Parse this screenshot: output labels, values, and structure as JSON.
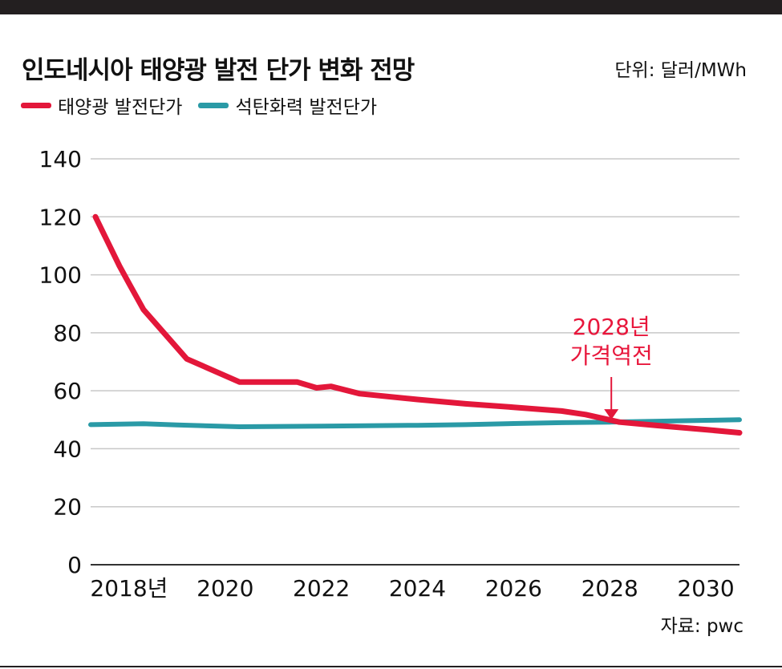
{
  "title": "인도네시아 태양광 발전 단가 변화 전망",
  "unit": "단위: 달러/MWh",
  "source": "자료: pwc",
  "colors": {
    "solar": "#e3173a",
    "coal": "#2a9aa6",
    "grid": "#c8c8c8",
    "axis": "#333333"
  },
  "chart_data": {
    "type": "line",
    "title": "인도네시아 태양광 발전 단가 변화 전망",
    "ylabel": "",
    "xlabel": "",
    "ylim": [
      0,
      140
    ],
    "xlim": [
      2017.2,
      2030.7
    ],
    "yticks": [
      0,
      20,
      40,
      60,
      80,
      100,
      120,
      140
    ],
    "xticks": [
      {
        "value": 2018,
        "label": "2018년"
      },
      {
        "value": 2020,
        "label": "2020"
      },
      {
        "value": 2022,
        "label": "2022"
      },
      {
        "value": 2024,
        "label": "2024"
      },
      {
        "value": 2026,
        "label": "2026"
      },
      {
        "value": 2028,
        "label": "2028"
      },
      {
        "value": 2030,
        "label": "2030"
      }
    ],
    "grid": true,
    "legend_position": "top-left",
    "series": [
      {
        "name": "태양광 발전단가",
        "color": "#e3173a",
        "points": [
          [
            2017.3,
            120
          ],
          [
            2017.8,
            103
          ],
          [
            2018.0,
            97
          ],
          [
            2018.3,
            88
          ],
          [
            2019.2,
            71
          ],
          [
            2020.3,
            63
          ],
          [
            2021.5,
            63
          ],
          [
            2021.9,
            61
          ],
          [
            2022.2,
            61.5
          ],
          [
            2022.8,
            59
          ],
          [
            2024.0,
            57
          ],
          [
            2025.0,
            55.5
          ],
          [
            2026.0,
            54.3
          ],
          [
            2027.0,
            53
          ],
          [
            2027.5,
            51.8
          ],
          [
            2028.2,
            49.2
          ],
          [
            2029.0,
            48
          ],
          [
            2030.0,
            46.6
          ],
          [
            2030.7,
            45.5
          ]
        ]
      },
      {
        "name": "석탄화력 발전단가",
        "color": "#2a9aa6",
        "points": [
          [
            2017.2,
            48.3
          ],
          [
            2018.3,
            48.6
          ],
          [
            2019.0,
            48.2
          ],
          [
            2020.3,
            47.6
          ],
          [
            2022.0,
            47.8
          ],
          [
            2024.0,
            48.1
          ],
          [
            2025.0,
            48.3
          ],
          [
            2026.0,
            48.7
          ],
          [
            2027.0,
            49.0
          ],
          [
            2028.0,
            49.2
          ],
          [
            2029.0,
            49.5
          ],
          [
            2030.0,
            49.8
          ],
          [
            2030.7,
            50.0
          ]
        ]
      }
    ],
    "annotation": {
      "lines": [
        "2028년",
        "가격역전"
      ],
      "x": 2028,
      "y": 49.2
    }
  }
}
